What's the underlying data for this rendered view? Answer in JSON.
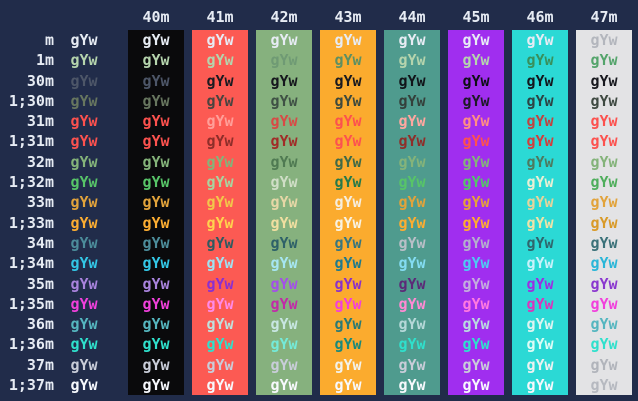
{
  "terminal": {
    "bg": "#212c4a",
    "default_fg": "#e7ecf4",
    "cell_text": "gYw"
  },
  "table": {
    "columns": [
      {
        "id": "default",
        "header": "",
        "bg": ""
      },
      {
        "id": "40m",
        "header": "40m",
        "bg": "#0a0a0c"
      },
      {
        "id": "41m",
        "header": "41m",
        "bg": "#fc5a53"
      },
      {
        "id": "42m",
        "header": "42m",
        "bg": "#86b17e"
      },
      {
        "id": "43m",
        "header": "43m",
        "bg": "#fbab2e"
      },
      {
        "id": "44m",
        "header": "44m",
        "bg": "#4f9b8e"
      },
      {
        "id": "45m",
        "header": "45m",
        "bg": "#a02eef"
      },
      {
        "id": "46m",
        "header": "46m",
        "bg": "#2bd9d5"
      },
      {
        "id": "47m",
        "header": "47m",
        "bg": "#e3e3e5"
      }
    ],
    "rows": [
      {
        "label": "m",
        "bold": false,
        "fg": "#e7ecf4",
        "overrides": {
          "47m": "#b3b6bd"
        }
      },
      {
        "label": "1m",
        "bold": true,
        "fg": "#b5d4ad",
        "overrides": {
          "42m": "#6f9a74",
          "43m": "#5e8f62",
          "46m": "#38905c",
          "47m": "#54a46b"
        }
      },
      {
        "label": "30m",
        "bold": false,
        "fg": "#4d5668",
        "overrides": {
          "41m": "#1a1b21",
          "42m": "#15171d",
          "43m": "#191a20",
          "44m": "#111419",
          "45m": "#0e0f15",
          "46m": "#14161c",
          "47m": "#17181e"
        }
      },
      {
        "label": "1;30m",
        "bold": true,
        "fg": "#67765f",
        "overrides": {
          "41m": "#4a4440",
          "42m": "#3f5145",
          "43m": "#3e4a3e",
          "44m": "#34403b",
          "45m": "#1e1a26",
          "46m": "#2e4343",
          "47m": "#3f4a42"
        }
      },
      {
        "label": "31m",
        "bold": false,
        "fg": "#fc514e",
        "overrides": {
          "41m": "#ff9f99",
          "42m": "#d84a46",
          "44m": "#ffa7a0",
          "45m": "#ff8e84",
          "46m": "#bf4340"
        }
      },
      {
        "label": "1;31m",
        "bold": true,
        "fg": "#fc524f",
        "overrides": {
          "41m": "#8e2e2a",
          "42m": "#a12c28",
          "44m": "#8e2e2a",
          "46m": "#d13e3c"
        }
      },
      {
        "label": "32m",
        "bold": false,
        "fg": "#84b37a",
        "overrides": {
          "42m": "#4f7a52",
          "43m": "#3f6a47",
          "46m": "#4d7a5f"
        }
      },
      {
        "label": "1;32m",
        "bold": true,
        "fg": "#57c468",
        "overrides": {
          "41m": "#a9d4a0",
          "42m": "#cfdec6",
          "43m": "#27794a",
          "46m": "#e9f0d4",
          "47m": "#4fae5c"
        }
      },
      {
        "label": "33m",
        "bold": false,
        "fg": "#e2a33b",
        "overrides": {
          "41m": "#f2c74b",
          "42m": "#e6d7a6",
          "43m": "#f6eede",
          "46m": "#e6d49c"
        }
      },
      {
        "label": "1;33m",
        "bold": true,
        "fg": "#fcad32",
        "overrides": {
          "41m": "#ffd24e",
          "42m": "#f0dfa0",
          "43m": "#f8f2e2",
          "46m": "#efe3a8",
          "47m": "#d99a28"
        }
      },
      {
        "label": "34m",
        "bold": false,
        "fg": "#4c8c9a",
        "overrides": {
          "41m": "#2f5a60",
          "42m": "#2e6168",
          "43m": "#38767e",
          "44m": "#b9bfc7",
          "45m": "#b4b0cc",
          "46m": "#2f666c",
          "47m": "#3b7179"
        }
      },
      {
        "label": "1;34m",
        "bold": true,
        "fg": "#33c7e6",
        "overrides": {
          "41m": "#9fe2f2",
          "42m": "#a6e6f2",
          "43m": "#1f7a8c",
          "44m": "#83dcf2",
          "45m": "#4fc9f2",
          "46m": "#c9f2fa",
          "47m": "#2ab6d8"
        }
      },
      {
        "label": "35m",
        "bold": false,
        "fg": "#a983dd",
        "overrides": {
          "41m": "#8b2fd0",
          "42m": "#a44fe8",
          "43m": "#8b30c8",
          "44m": "#5c2a78",
          "45m": "#c3aedd",
          "46m": "#9b30e0",
          "47m": "#8b37cf"
        }
      },
      {
        "label": "1;35m",
        "bold": true,
        "fg": "#f140dc",
        "overrides": {
          "41m": "#ff8ae8",
          "42m": "#c02ba8",
          "44m": "#ff8ad4",
          "45m": "#ff7ae0",
          "46m": "#d935bd"
        }
      },
      {
        "label": "36m",
        "bold": false,
        "fg": "#55b6bf",
        "overrides": {
          "41m": "#bfe2de",
          "42m": "#c8e6e2",
          "43m": "#2a7a74",
          "44m": "#b5d8d8",
          "45m": "#b8dce0",
          "46m": "#ddf4f2"
        }
      },
      {
        "label": "1;36m",
        "bold": true,
        "fg": "#2fe0cc",
        "overrides": {
          "42m": "#74ead8",
          "43m": "#19897b",
          "46m": "#dcfcf6"
        }
      },
      {
        "label": "37m",
        "bold": false,
        "fg": "#c9cdd9",
        "overrides": {
          "43m": "#f2f2ec",
          "46m": "#ecf2f2",
          "47m": "#b1b4bb"
        }
      },
      {
        "label": "1;37m",
        "bold": true,
        "fg": "#f7f9fd",
        "overrides": {
          "47m": "#b6b9c0"
        }
      }
    ]
  }
}
